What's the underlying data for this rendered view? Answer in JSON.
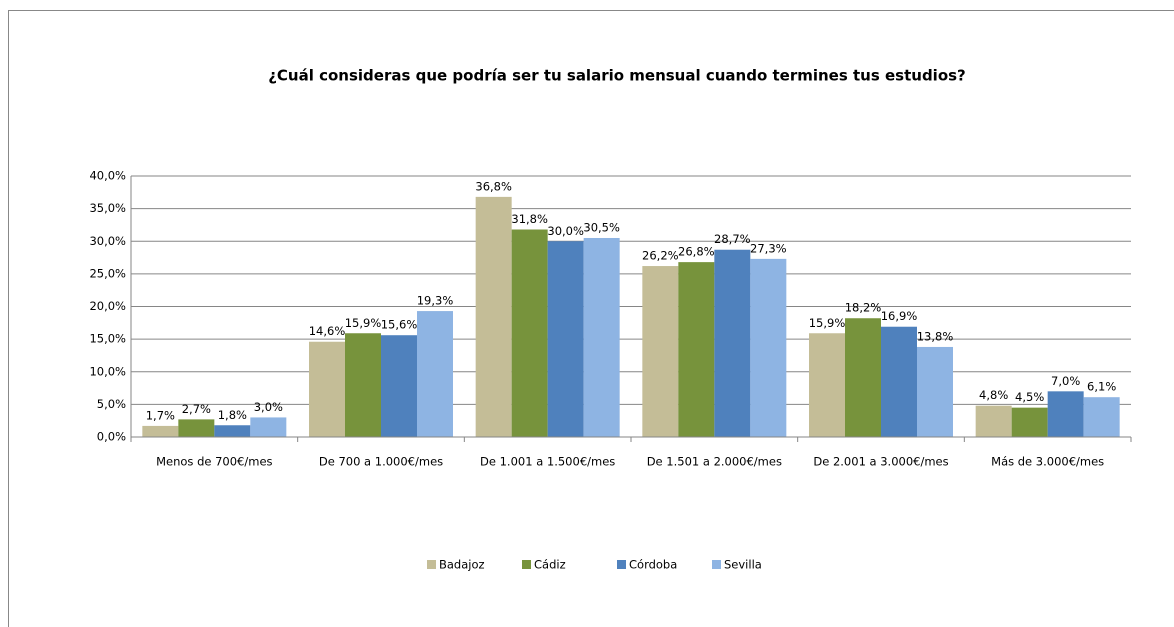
{
  "chart_data": {
    "type": "bar",
    "title": "¿Cuál consideras que podría ser tu salario mensual cuando termines tus estudios?",
    "categories": [
      "Menos de 700€/mes",
      "De 700 a 1.000€/mes",
      "De 1.001 a 1.500€/mes",
      "De 1.501 a 2.000€/mes",
      "De 2.001 a 3.000€/mes",
      "Más de 3.000€/mes"
    ],
    "series": [
      {
        "name": "Badajoz",
        "color": "#c4bd97",
        "values": [
          1.7,
          14.6,
          36.8,
          26.2,
          15.9,
          4.8
        ],
        "value_labels": [
          "1,7%",
          "14,6%",
          "36,8%",
          "26,2%",
          "15,9%",
          "4,8%"
        ]
      },
      {
        "name": "Cádiz",
        "color": "#77933c",
        "values": [
          2.7,
          15.9,
          31.8,
          26.8,
          18.2,
          4.5
        ],
        "value_labels": [
          "2,7%",
          "15,9%",
          "31,8%",
          "26,8%",
          "18,2%",
          "4,5%"
        ]
      },
      {
        "name": "Córdoba",
        "color": "#4f81bd",
        "values": [
          1.8,
          15.6,
          30.0,
          28.7,
          16.9,
          7.0
        ],
        "value_labels": [
          "1,8%",
          "15,6%",
          "30,0%",
          "28,7%",
          "16,9%",
          "7,0%"
        ]
      },
      {
        "name": "Sevilla",
        "color": "#8eb4e3",
        "values": [
          3.0,
          19.3,
          30.5,
          27.3,
          13.8,
          6.1
        ],
        "value_labels": [
          "3,0%",
          "19,3%",
          "30,5%",
          "27,3%",
          "13,8%",
          "6,1%"
        ]
      }
    ],
    "ylim": [
      0,
      40
    ],
    "yticks": [
      {
        "value": 0,
        "label": "0,0%"
      },
      {
        "value": 5,
        "label": "5,0%"
      },
      {
        "value": 10,
        "label": "10,0%"
      },
      {
        "value": 15,
        "label": "15,0%"
      },
      {
        "value": 20,
        "label": "20,0%"
      },
      {
        "value": 25,
        "label": "25,0%"
      },
      {
        "value": 30,
        "label": "30,0%"
      },
      {
        "value": 35,
        "label": "35,0%"
      },
      {
        "value": 40,
        "label": "40,0%"
      }
    ],
    "grid": true,
    "legend": "bottom"
  }
}
